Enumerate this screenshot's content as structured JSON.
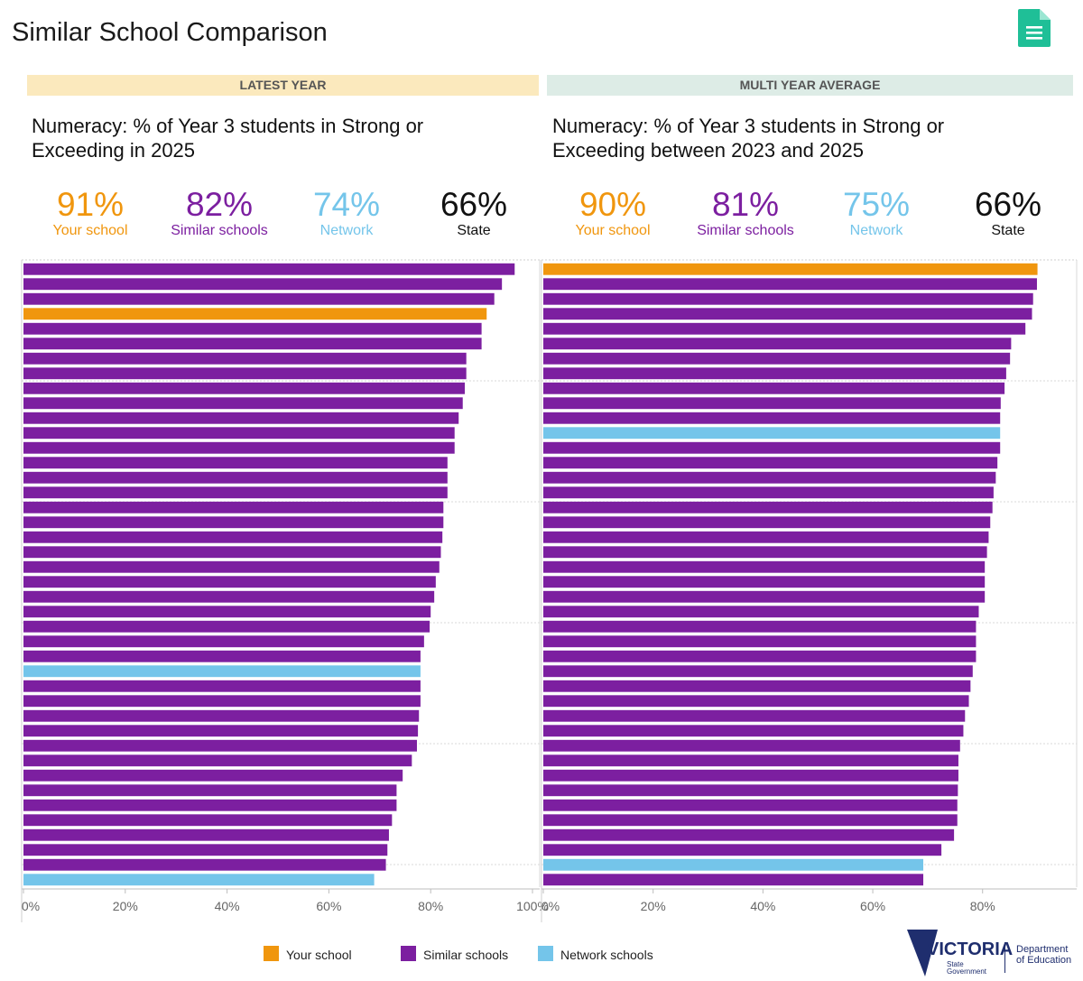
{
  "title": "Similar School Comparison",
  "icons": {
    "report": "document-icon"
  },
  "colors": {
    "your_school": "#f0960e",
    "similar": "#7c1fa0",
    "network": "#74c5ea",
    "state": "#111111"
  },
  "panels": {
    "left": {
      "band": "LATEST YEAR",
      "title_line1": "Numeracy: % of Year 3 students in Strong or",
      "title_line2": "Exceeding in 2025",
      "stats": [
        {
          "value": "91%",
          "label": "Your school"
        },
        {
          "value": "82%",
          "label": "Similar schools"
        },
        {
          "value": "74%",
          "label": "Network"
        },
        {
          "value": "66%",
          "label": "State"
        }
      ]
    },
    "right": {
      "band": "MULTI YEAR AVERAGE",
      "title_line1": "Numeracy: % of Year 3 students in Strong or",
      "title_line2": "Exceeding between 2023 and 2025",
      "stats": [
        {
          "value": "90%",
          "label": "Your school"
        },
        {
          "value": "81%",
          "label": "Similar schools"
        },
        {
          "value": "75%",
          "label": "Network"
        },
        {
          "value": "66%",
          "label": "State"
        }
      ]
    }
  },
  "legend": {
    "your_school": "Your school",
    "similar": "Similar schools",
    "network": "Network schools"
  },
  "logo": {
    "name": "VICTORIA",
    "sub1": "State",
    "sub2": "Government",
    "dept1": "Department",
    "dept2": "of Education"
  },
  "chart_data": [
    {
      "type": "bar",
      "orientation": "horizontal",
      "title": "Numeracy: % of Year 3 students in Strong or Exceeding in 2025",
      "xlim": [
        0,
        100
      ],
      "xticks": [
        "0%",
        "20%",
        "40%",
        "60%",
        "80%",
        "100%"
      ],
      "bars": [
        {
          "value": 96.5,
          "group": "similar"
        },
        {
          "value": 94,
          "group": "similar"
        },
        {
          "value": 92.5,
          "group": "similar"
        },
        {
          "value": 91,
          "group": "your_school"
        },
        {
          "value": 90,
          "group": "similar"
        },
        {
          "value": 90,
          "group": "similar"
        },
        {
          "value": 87,
          "group": "similar"
        },
        {
          "value": 87,
          "group": "similar"
        },
        {
          "value": 86.7,
          "group": "similar"
        },
        {
          "value": 86.3,
          "group": "similar"
        },
        {
          "value": 85.5,
          "group": "similar"
        },
        {
          "value": 84.7,
          "group": "similar"
        },
        {
          "value": 84.7,
          "group": "similar"
        },
        {
          "value": 83.3,
          "group": "similar"
        },
        {
          "value": 83.3,
          "group": "similar"
        },
        {
          "value": 83.3,
          "group": "similar"
        },
        {
          "value": 82.5,
          "group": "similar"
        },
        {
          "value": 82.5,
          "group": "similar"
        },
        {
          "value": 82.3,
          "group": "similar"
        },
        {
          "value": 82,
          "group": "similar"
        },
        {
          "value": 81.7,
          "group": "similar"
        },
        {
          "value": 81,
          "group": "similar"
        },
        {
          "value": 80.7,
          "group": "similar"
        },
        {
          "value": 80,
          "group": "similar"
        },
        {
          "value": 79.8,
          "group": "similar"
        },
        {
          "value": 78.7,
          "group": "similar"
        },
        {
          "value": 78,
          "group": "similar"
        },
        {
          "value": 78,
          "group": "network"
        },
        {
          "value": 78,
          "group": "similar"
        },
        {
          "value": 78,
          "group": "similar"
        },
        {
          "value": 77.7,
          "group": "similar"
        },
        {
          "value": 77.5,
          "group": "similar"
        },
        {
          "value": 77.3,
          "group": "similar"
        },
        {
          "value": 76.3,
          "group": "similar"
        },
        {
          "value": 74.5,
          "group": "similar"
        },
        {
          "value": 73.3,
          "group": "similar"
        },
        {
          "value": 73.3,
          "group": "similar"
        },
        {
          "value": 72.4,
          "group": "similar"
        },
        {
          "value": 71.8,
          "group": "similar"
        },
        {
          "value": 71.5,
          "group": "similar"
        },
        {
          "value": 71.2,
          "group": "similar"
        },
        {
          "value": 68.9,
          "group": "network"
        }
      ]
    },
    {
      "type": "bar",
      "orientation": "horizontal",
      "title": "Numeracy: % of Year 3 students in Strong or Exceeding between 2023 and 2025",
      "xlim": [
        0,
        95
      ],
      "xticks": [
        "0%",
        "20%",
        "40%",
        "60%",
        "80%"
      ],
      "bars": [
        {
          "value": 90,
          "group": "your_school"
        },
        {
          "value": 89.9,
          "group": "similar"
        },
        {
          "value": 89.2,
          "group": "similar"
        },
        {
          "value": 89,
          "group": "similar"
        },
        {
          "value": 87.8,
          "group": "similar"
        },
        {
          "value": 85.2,
          "group": "similar"
        },
        {
          "value": 85,
          "group": "similar"
        },
        {
          "value": 84.3,
          "group": "similar"
        },
        {
          "value": 84,
          "group": "similar"
        },
        {
          "value": 83.3,
          "group": "similar"
        },
        {
          "value": 83.2,
          "group": "similar"
        },
        {
          "value": 83.2,
          "group": "network"
        },
        {
          "value": 83.2,
          "group": "similar"
        },
        {
          "value": 82.7,
          "group": "similar"
        },
        {
          "value": 82.4,
          "group": "similar"
        },
        {
          "value": 82,
          "group": "similar"
        },
        {
          "value": 81.8,
          "group": "similar"
        },
        {
          "value": 81.4,
          "group": "similar"
        },
        {
          "value": 81.1,
          "group": "similar"
        },
        {
          "value": 80.8,
          "group": "similar"
        },
        {
          "value": 80.4,
          "group": "similar"
        },
        {
          "value": 80.4,
          "group": "similar"
        },
        {
          "value": 80.4,
          "group": "similar"
        },
        {
          "value": 79.3,
          "group": "similar"
        },
        {
          "value": 78.8,
          "group": "similar"
        },
        {
          "value": 78.8,
          "group": "similar"
        },
        {
          "value": 78.8,
          "group": "similar"
        },
        {
          "value": 78.2,
          "group": "similar"
        },
        {
          "value": 77.8,
          "group": "similar"
        },
        {
          "value": 77.5,
          "group": "similar"
        },
        {
          "value": 76.8,
          "group": "similar"
        },
        {
          "value": 76.5,
          "group": "similar"
        },
        {
          "value": 75.9,
          "group": "similar"
        },
        {
          "value": 75.6,
          "group": "similar"
        },
        {
          "value": 75.6,
          "group": "similar"
        },
        {
          "value": 75.5,
          "group": "similar"
        },
        {
          "value": 75.4,
          "group": "similar"
        },
        {
          "value": 75.4,
          "group": "similar"
        },
        {
          "value": 74.8,
          "group": "similar"
        },
        {
          "value": 72.5,
          "group": "similar"
        },
        {
          "value": 69.2,
          "group": "network"
        },
        {
          "value": 69.2,
          "group": "similar"
        }
      ]
    }
  ]
}
